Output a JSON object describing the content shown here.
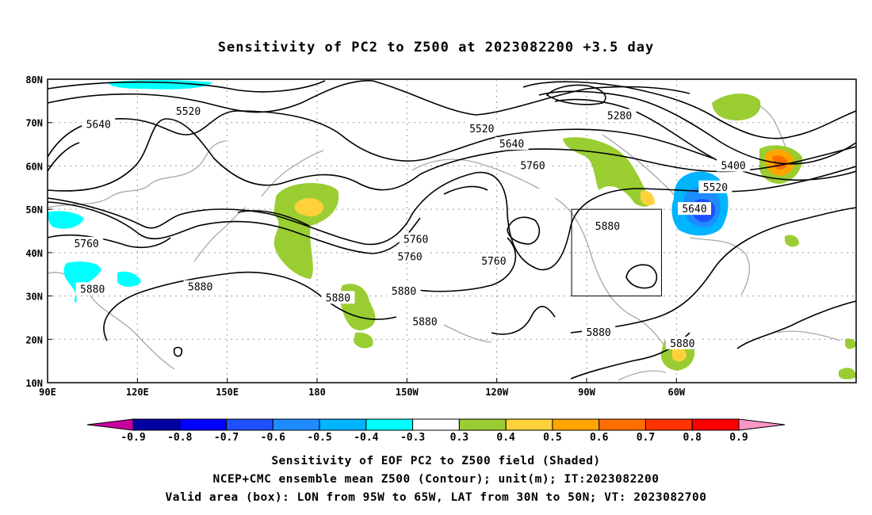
{
  "title": "Sensitivity of PC2 to Z500 at 2023082200 +3.5 day",
  "lon_ticks": [
    "90E",
    "120E",
    "150E",
    "180",
    "150W",
    "120W",
    "90W",
    "60W"
  ],
  "lat_ticks": [
    "80N",
    "70N",
    "60N",
    "50N",
    "40N",
    "30N",
    "20N",
    "10N"
  ],
  "contour_labels": [
    {
      "text": "5520",
      "lon": 137,
      "lat": 72.5
    },
    {
      "text": "5640",
      "lon": 107,
      "lat": 69.5
    },
    {
      "text": "5280",
      "lon": -79,
      "lat": 71.5
    },
    {
      "text": "5520",
      "lon": -125,
      "lat": 68.5
    },
    {
      "text": "5640",
      "lon": -115,
      "lat": 65
    },
    {
      "text": "5760",
      "lon": -108,
      "lat": 60
    },
    {
      "text": "5400",
      "lon": -41,
      "lat": 60
    },
    {
      "text": "5520",
      "lon": -47,
      "lat": 55
    },
    {
      "text": "5640",
      "lon": -54,
      "lat": 50
    },
    {
      "text": "5880",
      "lon": -83,
      "lat": 46
    },
    {
      "text": "5760",
      "lon": -147,
      "lat": 43
    },
    {
      "text": "5760",
      "lon": -149,
      "lat": 39
    },
    {
      "text": "5760",
      "lon": -121,
      "lat": 38
    },
    {
      "text": "5760",
      "lon": 103,
      "lat": 42
    },
    {
      "text": "5880",
      "lon": 105,
      "lat": 31.5
    },
    {
      "text": "5880",
      "lon": 141,
      "lat": 32
    },
    {
      "text": "5880",
      "lon": -173,
      "lat": 29.5
    },
    {
      "text": "5880",
      "lon": -151,
      "lat": 31
    },
    {
      "text": "5880",
      "lon": -144,
      "lat": 24
    },
    {
      "text": "5880",
      "lon": -86,
      "lat": 21.5
    },
    {
      "text": "5880",
      "lon": -58,
      "lat": 19
    }
  ],
  "valid_box": {
    "lon_min": -95,
    "lon_max": -65,
    "lat_min": 30,
    "lat_max": 50
  },
  "colorbar": {
    "labels": [
      "-0.9",
      "-0.8",
      "-0.7",
      "-0.6",
      "-0.5",
      "-0.4",
      "-0.3",
      "0.3",
      "0.4",
      "0.5",
      "0.6",
      "0.7",
      "0.8",
      "0.9"
    ],
    "colors": [
      "#0000a0",
      "#0000ff",
      "#1e50ff",
      "#1e8cff",
      "#00b4ff",
      "#00ffff",
      "#ffffff",
      "#9acd32",
      "#ffd23c",
      "#ffa500",
      "#ff6e00",
      "#ff3200",
      "#ff0000"
    ],
    "min_color": "#c800a0",
    "max_color": "#ff96c8"
  },
  "captions": [
    "Sensitivity of EOF PC2 to Z500 field (Shaded)",
    "NCEP+CMC ensemble mean Z500 (Contour); unit(m); IT:2023082200",
    "Valid area (box): LON from 95W to 65W, LAT from 30N to 50N; VT: 2023082700"
  ]
}
